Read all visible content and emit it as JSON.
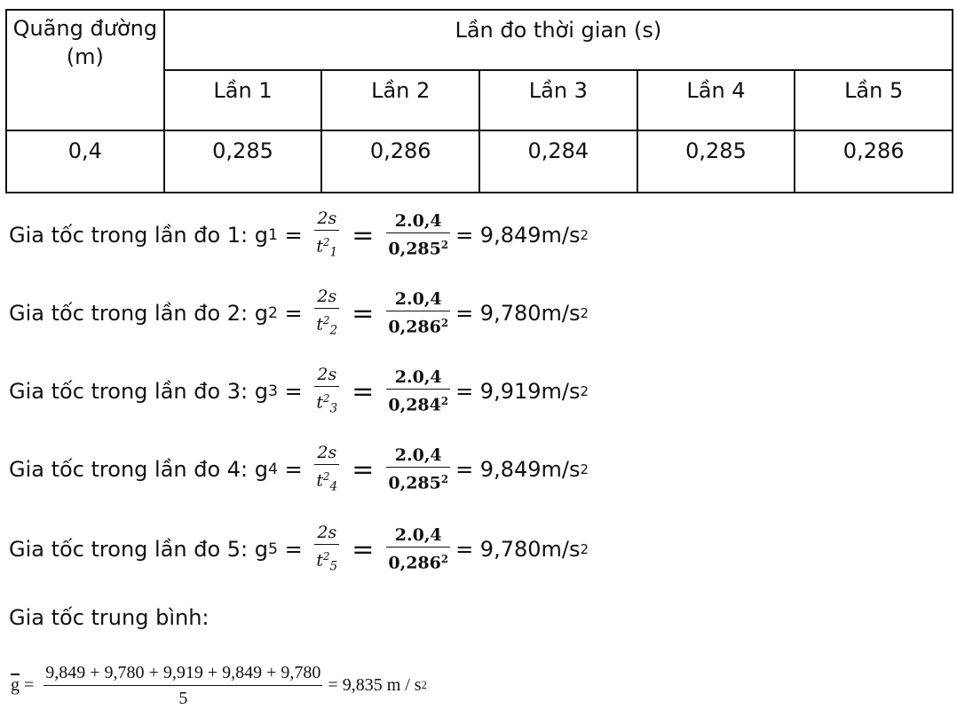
{
  "table": {
    "distance_header": "Quãng đường (m)",
    "time_header": "Lần đo thời gian (s)",
    "runs": [
      "Lần 1",
      "Lần 2",
      "Lần 3",
      "Lần 4",
      "Lần 5"
    ],
    "distance_value": "0,4",
    "times": [
      "0,285",
      "0,286",
      "0,284",
      "0,285",
      "0,286"
    ]
  },
  "formulas": [
    {
      "prefix": "Gia tốc trong lần đo 1: g",
      "index": "1",
      "symbol_num": "2s",
      "t_sub": "1",
      "value_num": "2.0,4",
      "value_den": "0,285",
      "result": " = 9,849m/s"
    },
    {
      "prefix": "Gia tốc trong lần đo 2: g",
      "index": "2",
      "symbol_num": "2s",
      "t_sub": "2",
      "value_num": "2.0,4",
      "value_den": "0,286",
      "result": " = 9,780m/s"
    },
    {
      "prefix": "Gia tốc trong lần đo 3: g",
      "index": "3",
      "symbol_num": "2s",
      "t_sub": "3",
      "value_num": "2.0,4",
      "value_den": "0,284",
      "result": " = 9,919m/s"
    },
    {
      "prefix": "Gia tốc trong lần đo 4: g",
      "index": "4",
      "symbol_num": "2s",
      "t_sub": "4",
      "value_num": "2.0,4",
      "value_den": "0,285",
      "result": " = 9,849m/s"
    },
    {
      "prefix": "Gia tốc trong lần đo 5: g",
      "index": "5",
      "symbol_num": "2s",
      "t_sub": "5",
      "value_num": "2.0,4",
      "value_den": "0,286",
      "result": " = 9,780m/s"
    }
  ],
  "average": {
    "title": "Gia tốc trung bình:",
    "symbol": "g",
    "numerator": "9,849 + 9,780 + 9,919 + 9,849 + 9,780",
    "denominator": "5",
    "result": "9,835 m / s"
  }
}
